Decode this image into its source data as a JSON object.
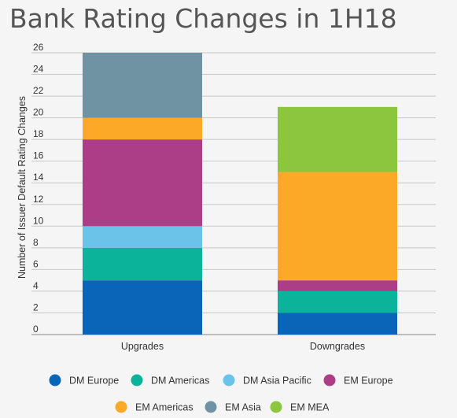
{
  "chart_data": {
    "type": "bar",
    "stacked": true,
    "title": "Bank Rating Changes in 1H18",
    "ylabel": "Number of Issuer Default Rating Changes",
    "xlabel": "",
    "categories": [
      "Upgrades",
      "Downgrades"
    ],
    "ylim": [
      0,
      26
    ],
    "yticks": [
      0,
      2,
      4,
      6,
      8,
      10,
      12,
      14,
      16,
      18,
      20,
      22,
      24,
      26
    ],
    "grid": true,
    "legend_position": "bottom",
    "series": [
      {
        "name": "DM Europe",
        "color": "#0a64b8",
        "values": [
          5,
          2
        ]
      },
      {
        "name": "DM Americas",
        "color": "#0bb39a",
        "values": [
          3,
          2
        ]
      },
      {
        "name": "DM Asia Pacific",
        "color": "#6cc3ea",
        "values": [
          2,
          0
        ]
      },
      {
        "name": "EM Europe",
        "color": "#ab3e86",
        "values": [
          8,
          1
        ]
      },
      {
        "name": "EM Americas",
        "color": "#fba927",
        "values": [
          2,
          10
        ]
      },
      {
        "name": "EM Asia",
        "color": "#7093a3",
        "values": [
          6,
          0
        ]
      },
      {
        "name": "EM MEA",
        "color": "#8cc63f",
        "values": [
          0,
          6
        ]
      }
    ]
  }
}
